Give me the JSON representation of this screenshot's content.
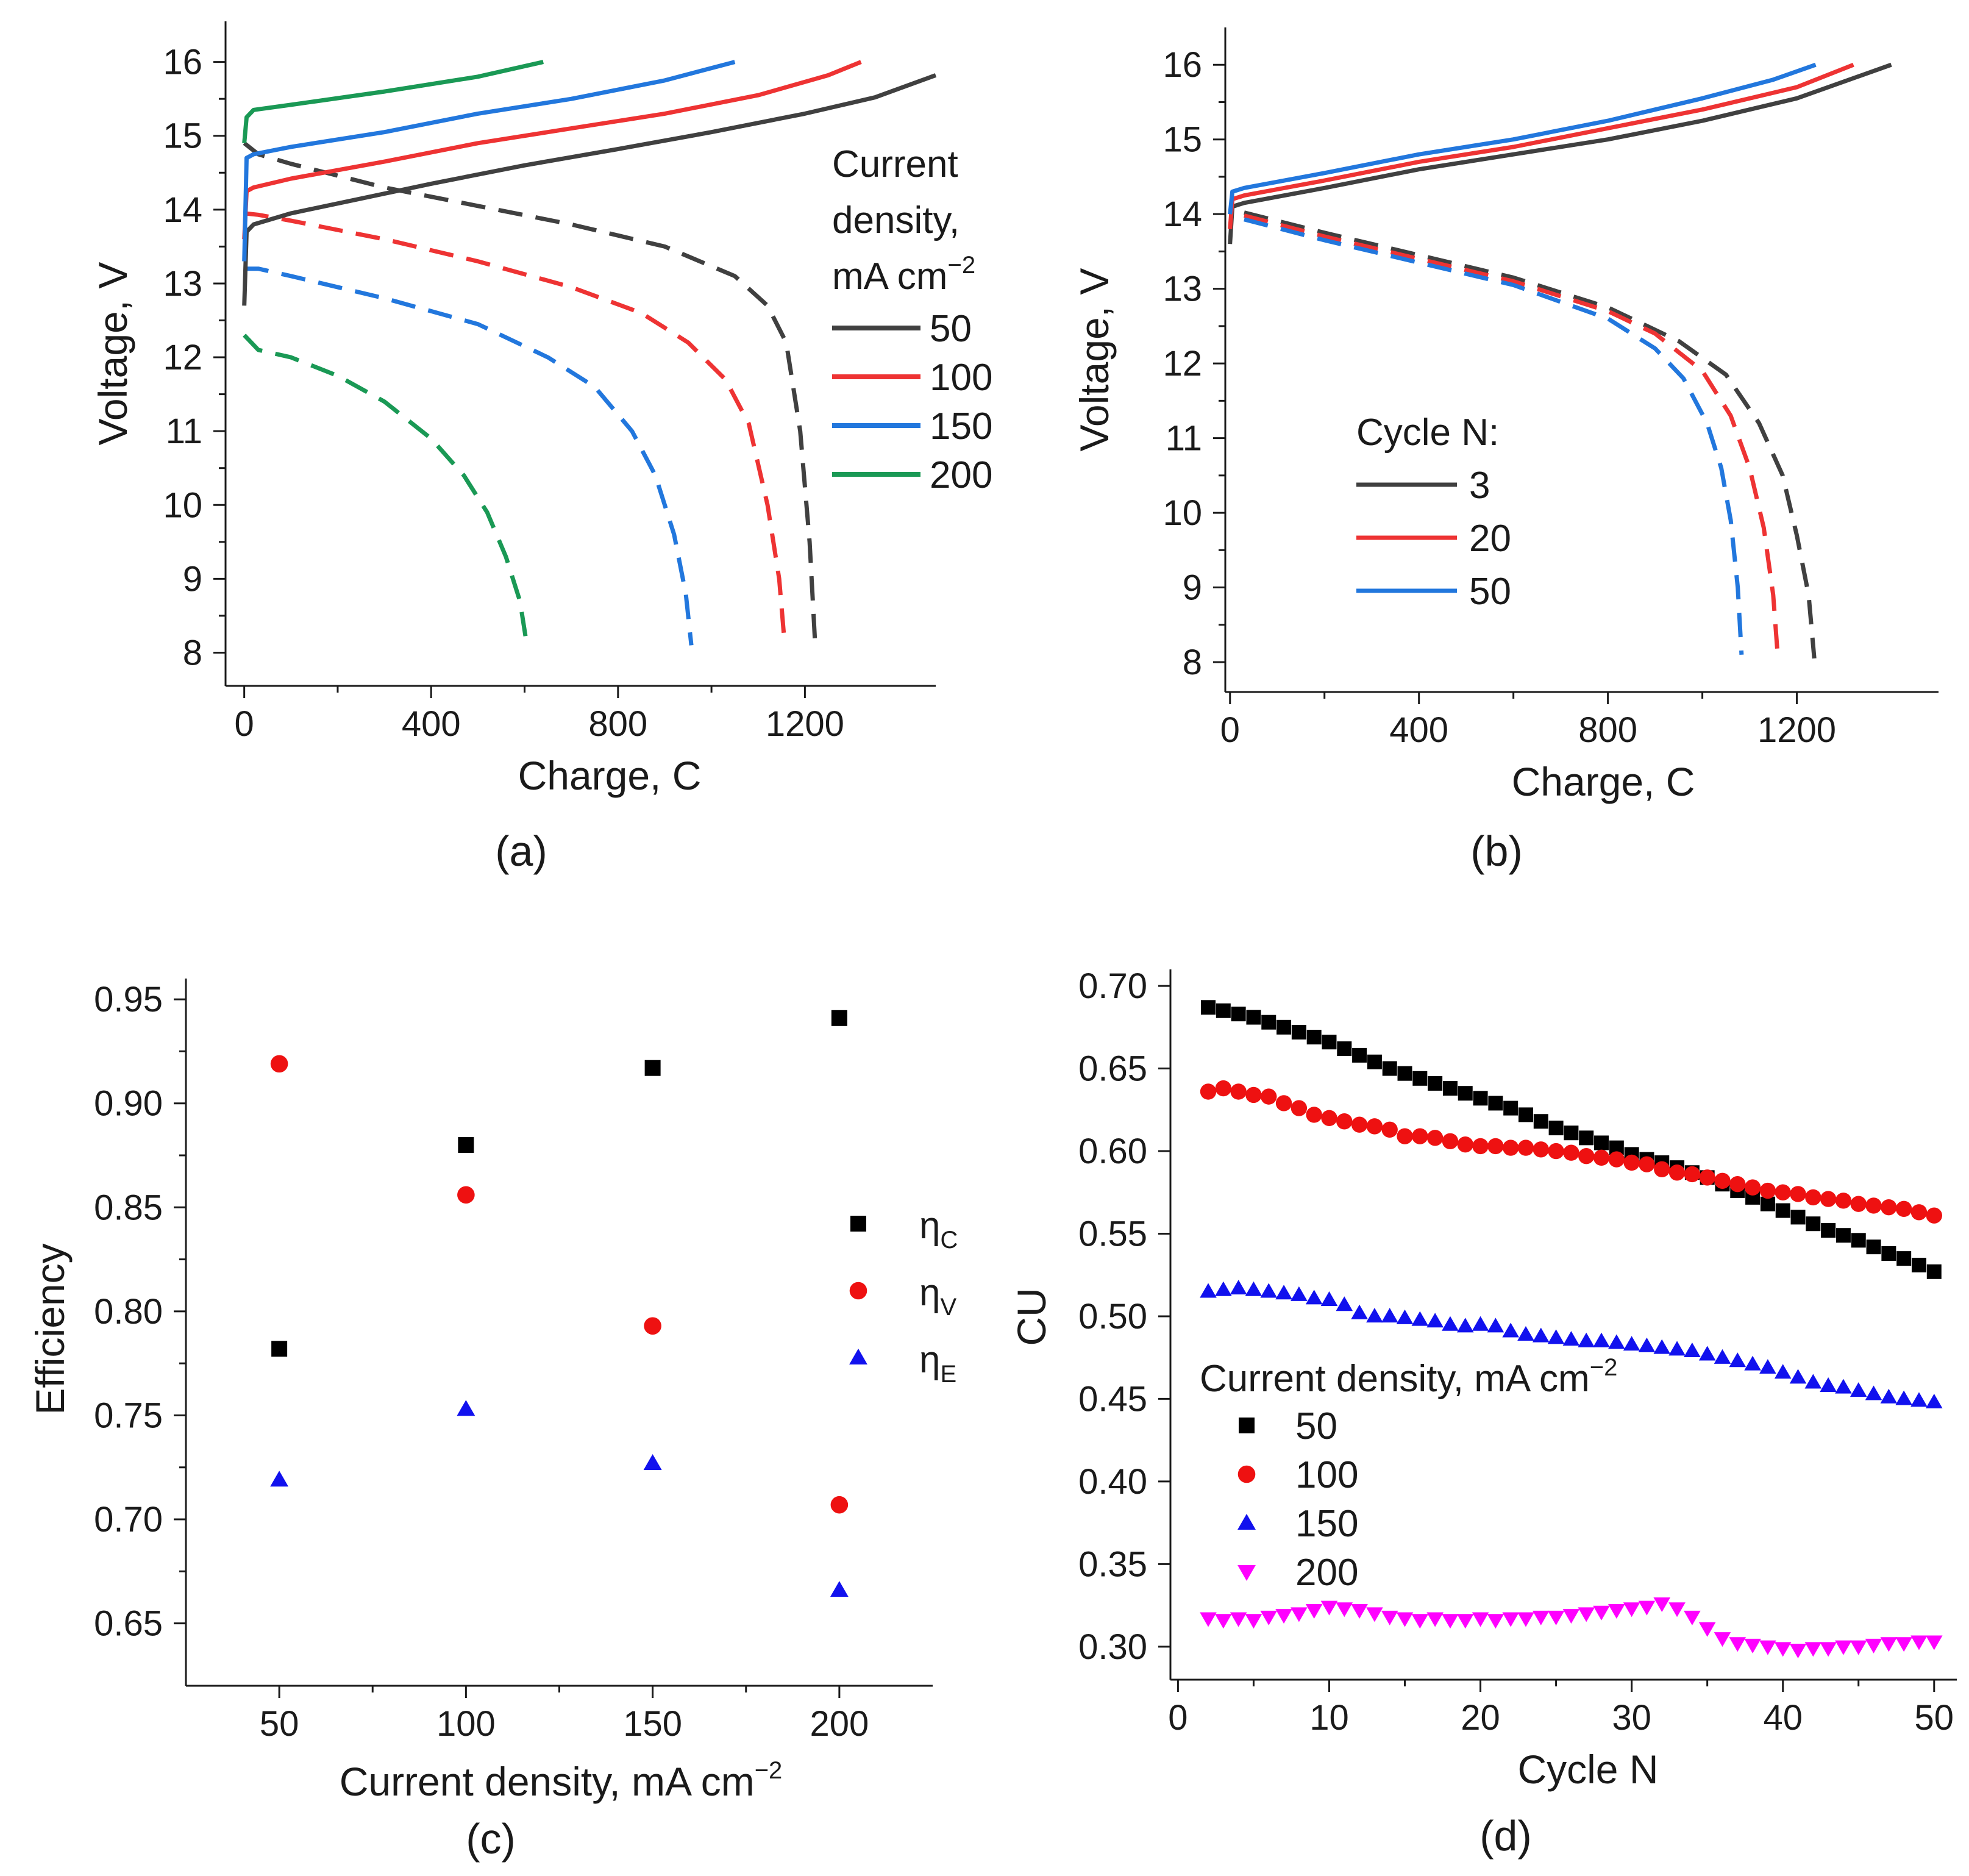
{
  "chart_data": [
    {
      "id": "a",
      "type": "line",
      "panel_label": "(a)",
      "xlabel": "Charge, C",
      "ylabel": "Voltage, V",
      "xlim": [
        -40,
        1480
      ],
      "ylim": [
        7.55,
        16.55
      ],
      "xticks": [
        0,
        400,
        800,
        1200
      ],
      "yticks": [
        8,
        9,
        10,
        11,
        12,
        13,
        14,
        15,
        16
      ],
      "legend_title": [
        "Current",
        "density,",
        "mA cm"
      ],
      "legend_title_sup": "−2",
      "legend_position": "right",
      "series": [
        {
          "name": "50",
          "color": "#404040",
          "charge": {
            "x": [
              0,
              5,
              20,
              100,
              250,
              400,
              600,
              800,
              1000,
              1200,
              1350,
              1480
            ],
            "y": [
              12.7,
              13.7,
              13.8,
              13.95,
              14.15,
              14.35,
              14.6,
              14.82,
              15.05,
              15.3,
              15.52,
              15.82
            ]
          },
          "discharge": {
            "x": [
              0,
              30,
              100,
              300,
              500,
              700,
              900,
              1050,
              1120,
              1160,
              1190,
              1210,
              1222
            ],
            "y": [
              14.9,
              14.75,
              14.62,
              14.3,
              14.05,
              13.8,
              13.5,
              13.1,
              12.7,
              12.2,
              11.0,
              9.5,
              8.1
            ]
          }
        },
        {
          "name": "100",
          "color": "#ee3333",
          "charge": {
            "x": [
              0,
              5,
              20,
              100,
              300,
              500,
              700,
              900,
              1100,
              1250,
              1320
            ],
            "y": [
              13.6,
              14.25,
              14.3,
              14.42,
              14.65,
              14.9,
              15.1,
              15.3,
              15.55,
              15.82,
              16.0
            ]
          },
          "discharge": {
            "x": [
              0,
              30,
              100,
              300,
              500,
              700,
              850,
              950,
              1030,
              1080,
              1120,
              1145,
              1157
            ],
            "y": [
              13.95,
              13.93,
              13.85,
              13.6,
              13.3,
              12.95,
              12.6,
              12.2,
              11.7,
              11.1,
              10.0,
              9.0,
              8.1
            ]
          }
        },
        {
          "name": "150",
          "color": "#2277dd",
          "charge": {
            "x": [
              0,
              5,
              20,
              100,
              300,
              500,
              700,
              900,
              1050
            ],
            "y": [
              13.3,
              14.7,
              14.75,
              14.85,
              15.05,
              15.3,
              15.5,
              15.75,
              16.0
            ]
          },
          "discharge": {
            "x": [
              0,
              30,
              100,
              300,
              500,
              650,
              750,
              830,
              880,
              920,
              945,
              957
            ],
            "y": [
              13.2,
              13.2,
              13.1,
              12.8,
              12.45,
              12.0,
              11.6,
              11.0,
              10.4,
              9.6,
              8.8,
              8.1
            ]
          }
        },
        {
          "name": "200",
          "color": "#1a9955",
          "charge": {
            "x": [
              0,
              5,
              20,
              100,
              300,
              500,
              640
            ],
            "y": [
              14.9,
              15.25,
              15.35,
              15.42,
              15.6,
              15.8,
              16.0
            ]
          },
          "discharge": {
            "x": [
              0,
              30,
              100,
              200,
              300,
              400,
              470,
              520,
              560,
              590,
              605
            ],
            "y": [
              12.3,
              12.1,
              12.0,
              11.75,
              11.4,
              10.9,
              10.4,
              9.9,
              9.3,
              8.7,
              8.1
            ]
          }
        }
      ]
    },
    {
      "id": "b",
      "type": "line",
      "panel_label": "(b)",
      "xlabel": "Charge, C",
      "ylabel": "Voltage, V",
      "xlim": [
        -10,
        1500
      ],
      "ylim": [
        7.6,
        16.5
      ],
      "xticks": [
        0,
        400,
        800,
        1200
      ],
      "yticks": [
        8,
        9,
        10,
        11,
        12,
        13,
        14,
        15,
        16
      ],
      "legend_title": [
        "Cycle N:"
      ],
      "legend_position": "left",
      "series": [
        {
          "name": "3",
          "color": "#404040",
          "charge": {
            "x": [
              0,
              5,
              30,
              200,
              400,
              600,
              800,
              1000,
              1200,
              1400
            ],
            "y": [
              13.6,
              14.1,
              14.15,
              14.35,
              14.6,
              14.8,
              15.0,
              15.25,
              15.55,
              16.0
            ]
          },
          "discharge": {
            "x": [
              30,
              200,
              400,
              600,
              800,
              950,
              1050,
              1120,
              1170,
              1200,
              1225,
              1237
            ],
            "y": [
              14.02,
              13.75,
              13.45,
              13.15,
              12.75,
              12.3,
              11.85,
              11.2,
              10.5,
              9.7,
              8.9,
              8.05
            ]
          }
        },
        {
          "name": "20",
          "color": "#ee3333",
          "charge": {
            "x": [
              0,
              5,
              30,
              200,
              400,
              600,
              800,
              1000,
              1200,
              1320
            ],
            "y": [
              13.8,
              14.2,
              14.25,
              14.45,
              14.7,
              14.9,
              15.15,
              15.4,
              15.7,
              16.0
            ]
          },
          "discharge": {
            "x": [
              30,
              200,
              400,
              600,
              800,
              900,
              1000,
              1060,
              1100,
              1130,
              1150,
              1160
            ],
            "y": [
              13.98,
              13.7,
              13.4,
              13.1,
              12.7,
              12.4,
              11.9,
              11.3,
              10.6,
              9.8,
              8.9,
              8.05
            ]
          }
        },
        {
          "name": "50",
          "color": "#2277dd",
          "charge": {
            "x": [
              0,
              5,
              30,
              200,
              400,
              600,
              800,
              1000,
              1150,
              1240
            ],
            "y": [
              14.0,
              14.3,
              14.35,
              14.55,
              14.8,
              15.0,
              15.25,
              15.55,
              15.8,
              16.0
            ]
          },
          "discharge": {
            "x": [
              30,
              200,
              400,
              600,
              800,
              900,
              960,
              1010,
              1040,
              1060,
              1075,
              1083
            ],
            "y": [
              13.93,
              13.65,
              13.35,
              13.05,
              12.6,
              12.2,
              11.8,
              11.2,
              10.6,
              9.9,
              9.0,
              8.1
            ]
          }
        }
      ]
    },
    {
      "id": "c",
      "type": "scatter",
      "panel_label": "(c)",
      "xlabel": "Current density, mA cm",
      "xlabel_sup": "−2",
      "ylabel": "Efficiency",
      "xlim": [
        25,
        225
      ],
      "ylim": [
        0.62,
        0.96
      ],
      "xticks": [
        50,
        100,
        150,
        200
      ],
      "yticks": [
        0.65,
        0.7,
        0.75,
        0.8,
        0.85,
        0.9,
        0.95
      ],
      "legend_position": "right",
      "series": [
        {
          "name": "η",
          "sub": "C",
          "marker": "square",
          "color": "#000000",
          "x": [
            50,
            100,
            150,
            200
          ],
          "y": [
            0.782,
            0.88,
            0.917,
            0.941
          ]
        },
        {
          "name": "η",
          "sub": "V",
          "marker": "circle",
          "color": "#ee1111",
          "x": [
            50,
            100,
            150,
            200
          ],
          "y": [
            0.919,
            0.856,
            0.793,
            0.707
          ]
        },
        {
          "name": "η",
          "sub": "E",
          "marker": "triangle",
          "color": "#1111ee",
          "x": [
            50,
            100,
            150,
            200
          ],
          "y": [
            0.719,
            0.753,
            0.727,
            0.666
          ]
        }
      ]
    },
    {
      "id": "d",
      "type": "scatter",
      "panel_label": "(d)",
      "xlabel": "Cycle N",
      "ylabel": "CU",
      "xlim": [
        -0.5,
        51.5
      ],
      "ylim": [
        0.28,
        0.71
      ],
      "xticks": [
        0,
        10,
        20,
        30,
        40,
        50
      ],
      "yticks": [
        0.3,
        0.35,
        0.4,
        0.45,
        0.5,
        0.55,
        0.6,
        0.65,
        0.7
      ],
      "legend_title": "Current density, mA cm",
      "legend_title_sup": "−2",
      "legend_position": "bottom-left",
      "series": [
        {
          "name": "50",
          "marker": "square",
          "color": "#000000",
          "x": [
            2,
            3,
            4,
            5,
            6,
            7,
            8,
            9,
            10,
            11,
            12,
            13,
            14,
            15,
            16,
            17,
            18,
            19,
            20,
            21,
            22,
            23,
            24,
            25,
            26,
            27,
            28,
            29,
            30,
            31,
            32,
            33,
            34,
            35,
            36,
            37,
            38,
            39,
            40,
            41,
            42,
            43,
            44,
            45,
            46,
            47,
            48,
            49,
            50
          ],
          "y": [
            0.687,
            0.685,
            0.683,
            0.681,
            0.678,
            0.675,
            0.672,
            0.669,
            0.666,
            0.662,
            0.658,
            0.654,
            0.65,
            0.647,
            0.644,
            0.641,
            0.638,
            0.635,
            0.632,
            0.629,
            0.626,
            0.622,
            0.618,
            0.614,
            0.611,
            0.608,
            0.605,
            0.602,
            0.598,
            0.595,
            0.593,
            0.59,
            0.587,
            0.584,
            0.58,
            0.576,
            0.572,
            0.568,
            0.564,
            0.56,
            0.556,
            0.552,
            0.549,
            0.546,
            0.542,
            0.538,
            0.535,
            0.531,
            0.527
          ]
        },
        {
          "name": "100",
          "marker": "circle",
          "color": "#ee1111",
          "x": [
            2,
            3,
            4,
            5,
            6,
            7,
            8,
            9,
            10,
            11,
            12,
            13,
            14,
            15,
            16,
            17,
            18,
            19,
            20,
            21,
            22,
            23,
            24,
            25,
            26,
            27,
            28,
            29,
            30,
            31,
            32,
            33,
            34,
            35,
            36,
            37,
            38,
            39,
            40,
            41,
            42,
            43,
            44,
            45,
            46,
            47,
            48,
            49,
            50
          ],
          "y": [
            0.636,
            0.638,
            0.636,
            0.634,
            0.633,
            0.629,
            0.626,
            0.622,
            0.62,
            0.618,
            0.616,
            0.615,
            0.613,
            0.609,
            0.609,
            0.608,
            0.606,
            0.604,
            0.603,
            0.603,
            0.602,
            0.602,
            0.601,
            0.6,
            0.599,
            0.597,
            0.596,
            0.595,
            0.593,
            0.592,
            0.589,
            0.587,
            0.586,
            0.584,
            0.582,
            0.58,
            0.578,
            0.576,
            0.575,
            0.574,
            0.572,
            0.571,
            0.57,
            0.568,
            0.567,
            0.566,
            0.565,
            0.563,
            0.561
          ]
        },
        {
          "name": "150",
          "marker": "triangle",
          "color": "#1111ee",
          "x": [
            2,
            3,
            4,
            5,
            6,
            7,
            8,
            9,
            10,
            11,
            12,
            13,
            14,
            15,
            16,
            17,
            18,
            19,
            20,
            21,
            22,
            23,
            24,
            25,
            26,
            27,
            28,
            29,
            30,
            31,
            32,
            33,
            34,
            35,
            36,
            37,
            38,
            39,
            40,
            41,
            42,
            43,
            44,
            45,
            46,
            47,
            48,
            49,
            50
          ],
          "y": [
            0.515,
            0.516,
            0.517,
            0.516,
            0.515,
            0.514,
            0.513,
            0.511,
            0.51,
            0.507,
            0.502,
            0.5,
            0.5,
            0.499,
            0.498,
            0.497,
            0.495,
            0.494,
            0.495,
            0.494,
            0.491,
            0.489,
            0.488,
            0.487,
            0.486,
            0.485,
            0.485,
            0.484,
            0.483,
            0.482,
            0.481,
            0.48,
            0.479,
            0.477,
            0.475,
            0.473,
            0.471,
            0.469,
            0.466,
            0.463,
            0.46,
            0.458,
            0.457,
            0.455,
            0.453,
            0.451,
            0.45,
            0.449,
            0.448
          ]
        },
        {
          "name": "200",
          "marker": "triangle-down",
          "color": "#ff00ff",
          "x": [
            2,
            3,
            4,
            5,
            6,
            7,
            8,
            9,
            10,
            11,
            12,
            13,
            14,
            15,
            16,
            17,
            18,
            19,
            20,
            21,
            22,
            23,
            24,
            25,
            26,
            27,
            28,
            29,
            30,
            31,
            32,
            33,
            34,
            35,
            36,
            37,
            38,
            39,
            40,
            41,
            42,
            43,
            44,
            45,
            46,
            47,
            48,
            49,
            50
          ],
          "y": [
            0.317,
            0.316,
            0.317,
            0.316,
            0.318,
            0.319,
            0.32,
            0.322,
            0.324,
            0.323,
            0.322,
            0.32,
            0.318,
            0.317,
            0.316,
            0.317,
            0.316,
            0.316,
            0.317,
            0.316,
            0.317,
            0.317,
            0.318,
            0.318,
            0.319,
            0.32,
            0.321,
            0.322,
            0.323,
            0.324,
            0.326,
            0.323,
            0.318,
            0.311,
            0.305,
            0.302,
            0.301,
            0.3,
            0.299,
            0.298,
            0.299,
            0.299,
            0.3,
            0.3,
            0.301,
            0.302,
            0.302,
            0.303,
            0.303
          ]
        }
      ]
    }
  ]
}
